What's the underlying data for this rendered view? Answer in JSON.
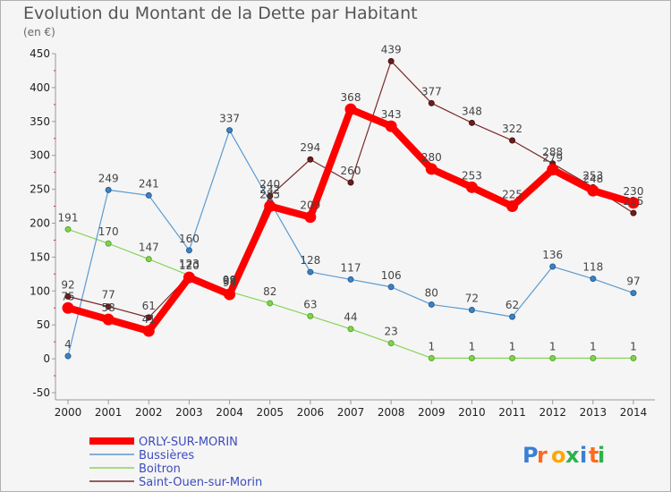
{
  "title": "Evolution du Montant de la Dette par Habitant",
  "unit": "(en €)",
  "logo_text": "Proxiti",
  "colors": {
    "ORLY-SUR-MORIN": "#ff0000",
    "Bussières": "#5a9ad0",
    "Boitron": "#88d35a",
    "Saint-Ouen-sur-Morin": "#7a2a2a"
  },
  "chart_data": {
    "type": "line",
    "x": [
      2000,
      2001,
      2002,
      2003,
      2004,
      2005,
      2006,
      2007,
      2008,
      2009,
      2010,
      2011,
      2012,
      2013,
      2014
    ],
    "ylim": [
      -50,
      450
    ],
    "yticks": [
      -50,
      0,
      50,
      100,
      150,
      200,
      250,
      300,
      350,
      400,
      450
    ],
    "legend_position": "bottom-left",
    "grid": false,
    "series": [
      {
        "name": "ORLY-SUR-MORIN",
        "values": [
          75,
          58,
          41,
          120,
          95,
          225,
          209,
          368,
          343,
          280,
          253,
          225,
          279,
          248,
          230
        ]
      },
      {
        "name": "Bussières",
        "values": [
          4,
          249,
          241,
          160,
          337,
          232,
          128,
          117,
          106,
          80,
          72,
          62,
          136,
          118,
          97
        ]
      },
      {
        "name": "Boitron",
        "values": [
          191,
          170,
          147,
          123,
          99,
          82,
          63,
          44,
          23,
          1,
          1,
          1,
          1,
          1,
          1
        ]
      },
      {
        "name": "Saint-Ouen-sur-Morin",
        "values": [
          92,
          77,
          61,
          123,
          98,
          240,
          294,
          260,
          439,
          377,
          348,
          322,
          288,
          253,
          215
        ]
      }
    ]
  }
}
